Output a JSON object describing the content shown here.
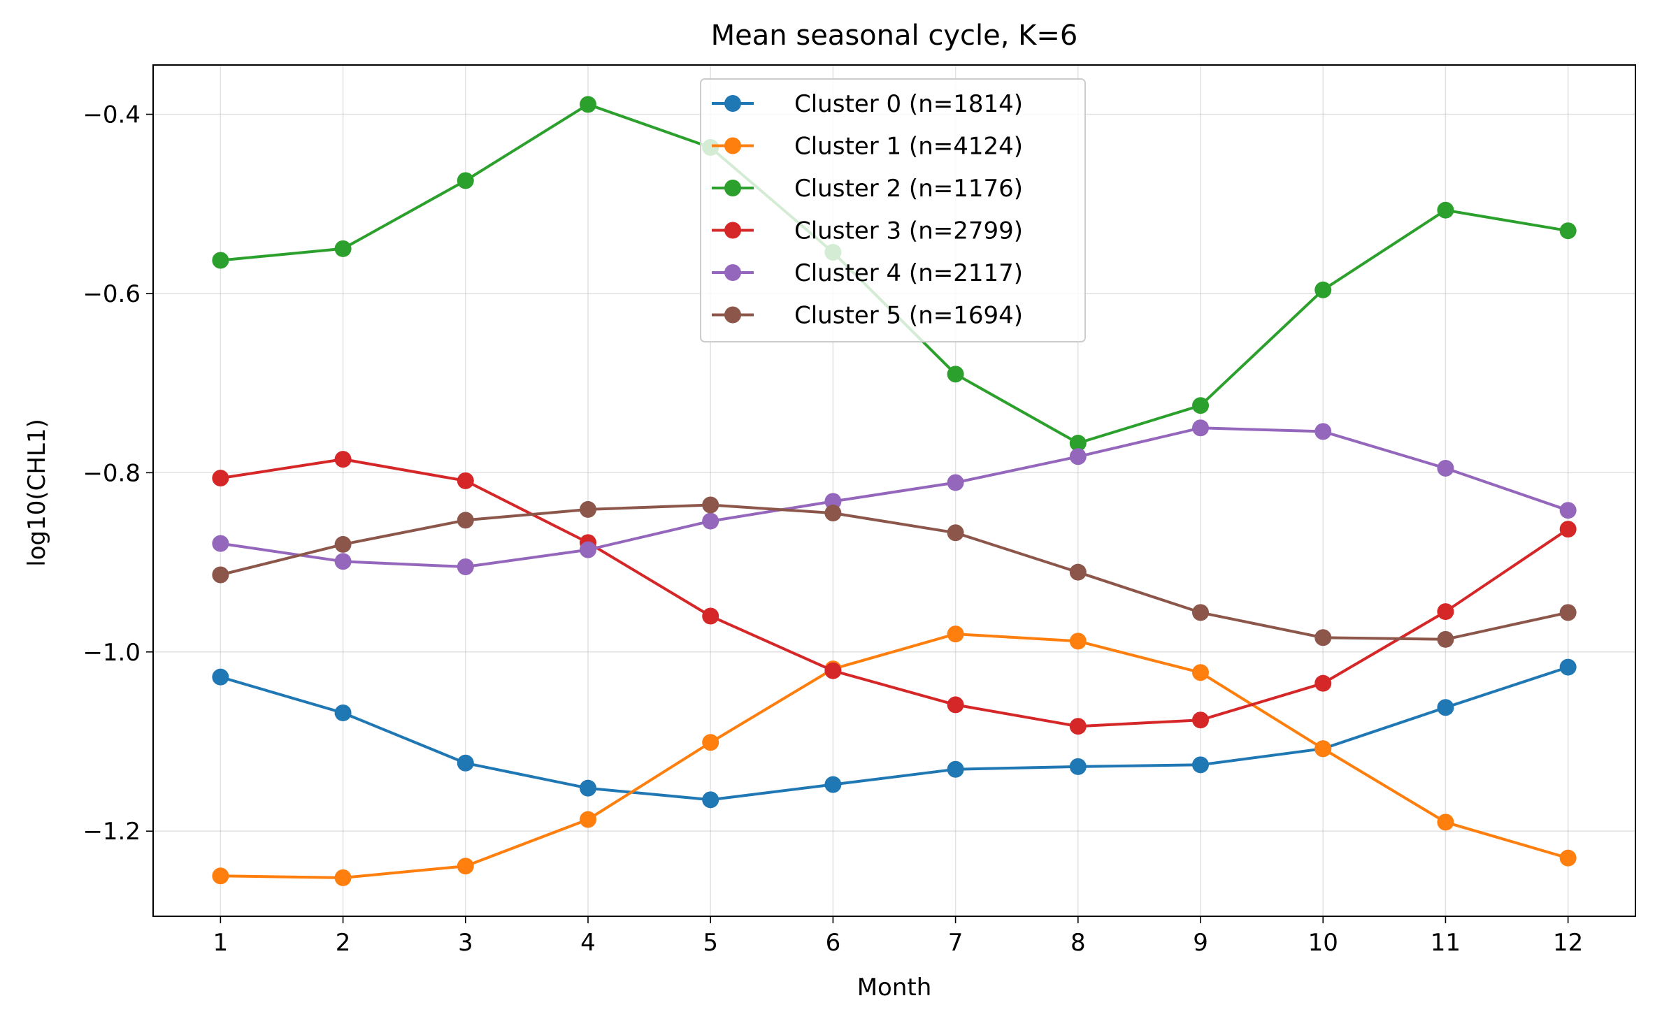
{
  "chart_data": {
    "type": "line",
    "title": "Mean seasonal cycle, K=6",
    "xlabel": "Month",
    "ylabel": "log10(CHL1)",
    "x": [
      1,
      2,
      3,
      4,
      5,
      6,
      7,
      8,
      9,
      10,
      11,
      12
    ],
    "xlim": [
      0.45,
      12.55
    ],
    "ylim": [
      -1.295,
      -0.345
    ],
    "yticks": [
      -1.2,
      -1.0,
      -0.8,
      -0.6,
      -0.4
    ],
    "ytick_labels": [
      "−1.2",
      "−1.0",
      "−0.8",
      "−0.6",
      "−0.4"
    ],
    "xtick_labels": [
      "1",
      "2",
      "3",
      "4",
      "5",
      "6",
      "7",
      "8",
      "9",
      "10",
      "11",
      "12"
    ],
    "grid": true,
    "legend_position": "top-center",
    "series": [
      {
        "name": "Cluster 0 (n=1814)",
        "color": "#1f77b4",
        "values": [
          -1.028,
          -1.068,
          -1.124,
          -1.152,
          -1.165,
          -1.148,
          -1.131,
          -1.128,
          -1.126,
          -1.108,
          -1.062,
          -1.017
        ]
      },
      {
        "name": "Cluster 1 (n=4124)",
        "color": "#ff7f0e",
        "values": [
          -1.25,
          -1.252,
          -1.239,
          -1.187,
          -1.101,
          -1.019,
          -0.98,
          -0.988,
          -1.023,
          -1.108,
          -1.19,
          -1.23
        ]
      },
      {
        "name": "Cluster 2 (n=1176)",
        "color": "#2ca02c",
        "values": [
          -0.563,
          -0.55,
          -0.474,
          -0.389,
          -0.437,
          -0.554,
          -0.69,
          -0.767,
          -0.725,
          -0.596,
          -0.507,
          -0.53
        ]
      },
      {
        "name": "Cluster 3 (n=2799)",
        "color": "#d62728",
        "values": [
          -0.806,
          -0.785,
          -0.809,
          -0.878,
          -0.96,
          -1.021,
          -1.059,
          -1.083,
          -1.076,
          -1.035,
          -0.955,
          -0.863
        ]
      },
      {
        "name": "Cluster 4 (n=2117)",
        "color": "#9467bd",
        "values": [
          -0.879,
          -0.899,
          -0.905,
          -0.886,
          -0.854,
          -0.832,
          -0.811,
          -0.782,
          -0.75,
          -0.754,
          -0.795,
          -0.842
        ]
      },
      {
        "name": "Cluster 5 (n=1694)",
        "color": "#8c564b",
        "values": [
          -0.914,
          -0.88,
          -0.853,
          -0.841,
          -0.836,
          -0.845,
          -0.867,
          -0.911,
          -0.956,
          -0.984,
          -0.986,
          -0.956
        ]
      }
    ]
  }
}
